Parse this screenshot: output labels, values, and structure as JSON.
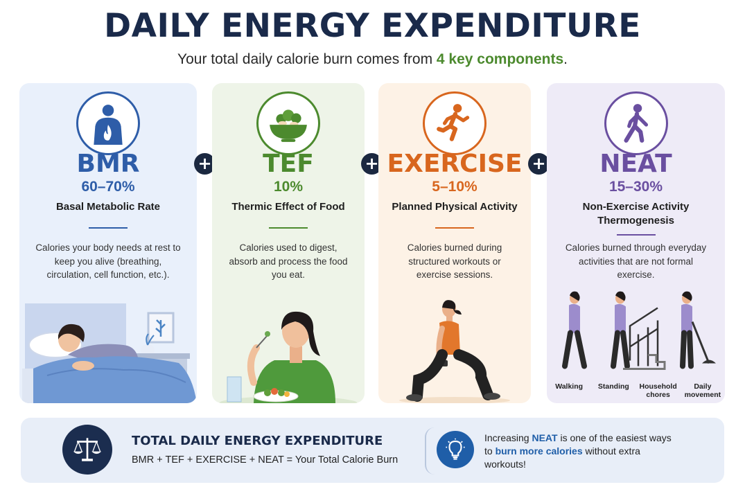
{
  "header": {
    "title": "DAILY ENERGY EXPENDITURE",
    "subtitle_prefix": "Your total daily calorie burn comes from ",
    "subtitle_highlight": "4 key components",
    "subtitle_suffix": "."
  },
  "operator": "+",
  "components": [
    {
      "abbr": "BMR",
      "percent": "60–70%",
      "name": "Basal Metabolic Rate",
      "description": "Calories your body needs at rest to keep you alive (breathing, circulation, cell function, etc.).",
      "color": "#2e5da8",
      "icon": "body-flame-icon",
      "illustration": "person-sleeping-in-bed"
    },
    {
      "abbr": "TEF",
      "percent": "10%",
      "name": "Thermic Effect of Food",
      "description": "Calories used to digest, absorb and process the food you eat.",
      "color": "#4c8a2e",
      "icon": "food-bowl-icon",
      "illustration": "person-eating-salad"
    },
    {
      "abbr": "EXERCISE",
      "percent": "5–10%",
      "name": "Planned Physical Activity",
      "description": "Calories burned during structured workouts or exercise sessions.",
      "color": "#d8661e",
      "icon": "runner-icon",
      "illustration": "person-lunging-with-dumbbells"
    },
    {
      "abbr": "NEAT",
      "percent": "15–30%",
      "name": "Non-Exercise Activity Thermogenesis",
      "description": "Calories burned through everyday activities that are not formal exercise.",
      "color": "#6a4fa0",
      "icon": "walker-icon",
      "illustration": "everyday-activities",
      "activities": [
        "Walking",
        "Standing",
        "Household chores",
        "Daily movement"
      ]
    }
  ],
  "summary": {
    "title": "TOTAL DAILY ENERGY EXPENDITURE",
    "formula": "BMR + TEF + EXERCISE + NEAT = Your Total Calorie Burn",
    "icon": "balance-scale-icon"
  },
  "tip": {
    "icon": "lightbulb-icon",
    "part1": "Increasing ",
    "neat": "NEAT",
    "part2": " is one of the easiest ways to ",
    "highlight": "burn more calories",
    "part3": " without extra workouts!"
  }
}
